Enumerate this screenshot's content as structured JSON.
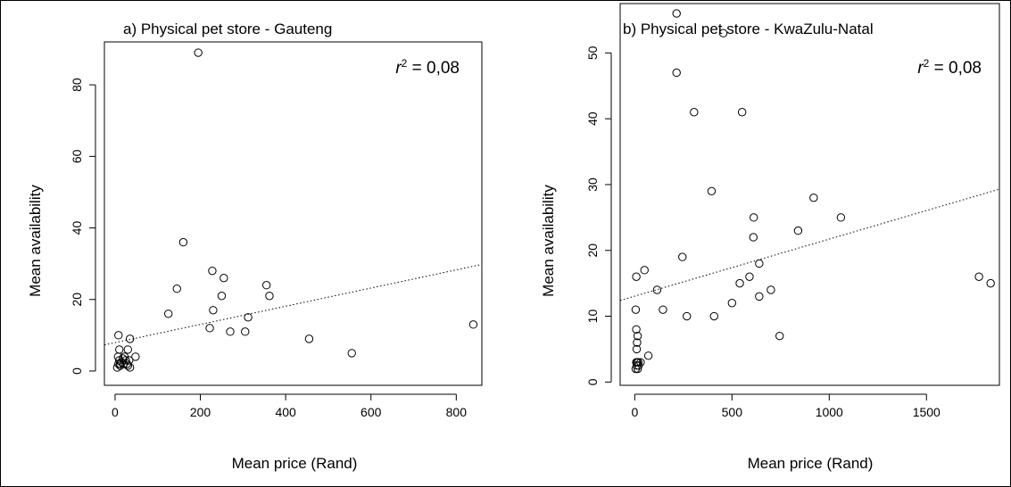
{
  "chart_data": [
    {
      "type": "scatter",
      "title": "a) Physical pet store - Gauteng",
      "xlabel": "Mean price (Rand)",
      "ylabel": "Mean availability",
      "annotation": {
        "r": "r",
        "sup": "2",
        "rest": " = 0,08"
      },
      "xlim": [
        -25,
        860
      ],
      "ylim": [
        -4,
        92
      ],
      "xticks": [
        0,
        200,
        400,
        600,
        800
      ],
      "yticks": [
        0,
        20,
        40,
        60,
        80
      ],
      "regression": {
        "x0": -25,
        "y0": 7.3,
        "x1": 860,
        "y1": 29.8
      },
      "points": [
        [
          5,
          1
        ],
        [
          8,
          2
        ],
        [
          10,
          3
        ],
        [
          12,
          1.5
        ],
        [
          15,
          2.5
        ],
        [
          18,
          3.5
        ],
        [
          20,
          2
        ],
        [
          22,
          4
        ],
        [
          25,
          3
        ],
        [
          28,
          2
        ],
        [
          30,
          1.5
        ],
        [
          33,
          3
        ],
        [
          35,
          1
        ],
        [
          7,
          4
        ],
        [
          10,
          6
        ],
        [
          8,
          10
        ],
        [
          30,
          6
        ],
        [
          35,
          9
        ],
        [
          48,
          4
        ],
        [
          12,
          2
        ],
        [
          125,
          16
        ],
        [
          145,
          23
        ],
        [
          160,
          36
        ],
        [
          195,
          89
        ],
        [
          222,
          12
        ],
        [
          228,
          28
        ],
        [
          230,
          17
        ],
        [
          250,
          21
        ],
        [
          255,
          26
        ],
        [
          270,
          11
        ],
        [
          305,
          11
        ],
        [
          312,
          15
        ],
        [
          355,
          24
        ],
        [
          362,
          21
        ],
        [
          455,
          9
        ],
        [
          555,
          5
        ],
        [
          840,
          13
        ]
      ]
    },
    {
      "type": "scatter",
      "title": "b) Physical pet store - KwaZulu-Natal",
      "xlabel": "Mean price (Rand)",
      "ylabel": "Mean availability",
      "annotation": {
        "r": "r",
        "sup": "2",
        "rest": " = 0,08"
      },
      "xlim": [
        -75,
        1875
      ],
      "ylim": [
        -0.5,
        57.5
      ],
      "xticks": [
        0,
        500,
        1000,
        1500
      ],
      "yticks": [
        0,
        10,
        20,
        30,
        40,
        50
      ],
      "regression": {
        "x0": -75,
        "y0": 12.4,
        "x1": 1875,
        "y1": 29.3
      },
      "points": [
        [
          5,
          2
        ],
        [
          8,
          3
        ],
        [
          10,
          2.5
        ],
        [
          12,
          3
        ],
        [
          15,
          2
        ],
        [
          18,
          3
        ],
        [
          20,
          2.5
        ],
        [
          10,
          5
        ],
        [
          12,
          6
        ],
        [
          15,
          7
        ],
        [
          8,
          8
        ],
        [
          5,
          11
        ],
        [
          8,
          16
        ],
        [
          50,
          17
        ],
        [
          70,
          4
        ],
        [
          30,
          3
        ],
        [
          115,
          14
        ],
        [
          145,
          11
        ],
        [
          215,
          56
        ],
        [
          215,
          47
        ],
        [
          245,
          19
        ],
        [
          268,
          10
        ],
        [
          305,
          41
        ],
        [
          395,
          29
        ],
        [
          408,
          10
        ],
        [
          455,
          53
        ],
        [
          500,
          12
        ],
        [
          540,
          15
        ],
        [
          552,
          41
        ],
        [
          590,
          16
        ],
        [
          610,
          22
        ],
        [
          612,
          25
        ],
        [
          640,
          18
        ],
        [
          640,
          13
        ],
        [
          700,
          14
        ],
        [
          745,
          7
        ],
        [
          840,
          23
        ],
        [
          920,
          28
        ],
        [
          1060,
          25
        ],
        [
          1770,
          16
        ],
        [
          1830,
          15
        ]
      ]
    }
  ]
}
